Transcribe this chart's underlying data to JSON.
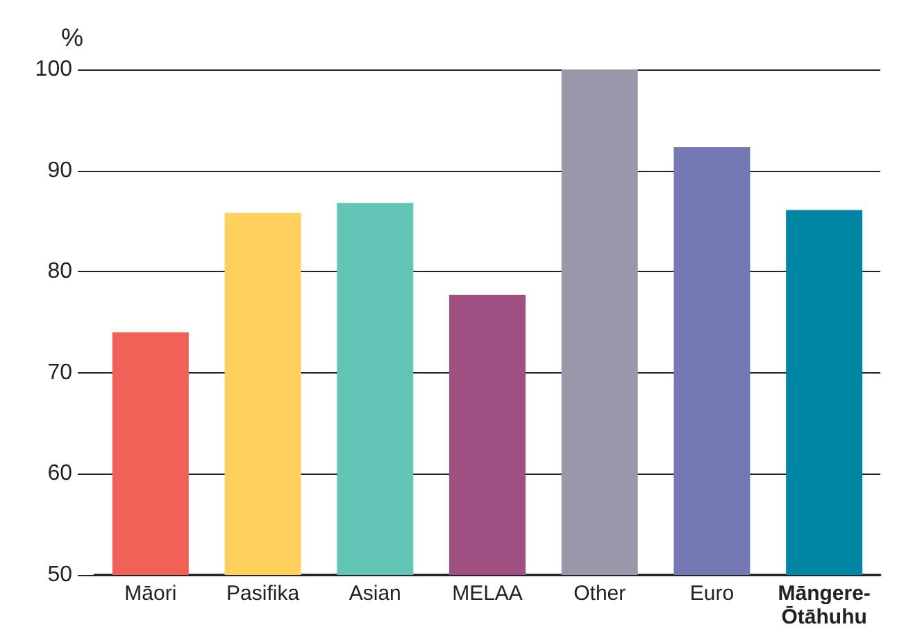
{
  "chart_data": {
    "type": "bar",
    "ylabel": "%",
    "categories": [
      "Māori",
      "Pasifika",
      "Asian",
      "MELAA",
      "Other",
      "Euro",
      "Māngere-Ōtāhuhu"
    ],
    "values": [
      74,
      85.8,
      86.8,
      77.7,
      100,
      92.3,
      86.1
    ],
    "colors": [
      "#f26157",
      "#ffd15c",
      "#63c5b5",
      "#a05082",
      "#9997aa",
      "#7479b3",
      "#0086a3"
    ],
    "ylim": [
      50,
      100
    ],
    "yticks": [
      50,
      60,
      70,
      80,
      90,
      100
    ],
    "grid": "y"
  }
}
